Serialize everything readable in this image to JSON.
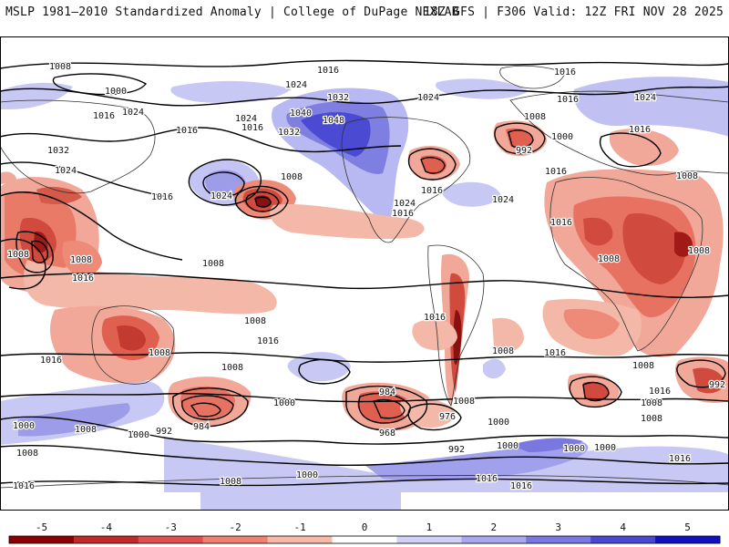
{
  "header": {
    "title": "MSLP 1981–2010 Standardized Anomaly | College of DuPage NEXLAB",
    "run_info": "18Z GFS | F306 Valid: 12Z FRI NOV 28 2025"
  },
  "colorbar": {
    "ticks": [
      "-5",
      "-4",
      "-3",
      "-2",
      "-1",
      "0",
      "1",
      "2",
      "3",
      "4",
      "5"
    ],
    "colors": [
      "#8b0000",
      "#c22a2a",
      "#e05050",
      "#f08070",
      "#f8b8a8",
      "#ffffff",
      "#d0d0f8",
      "#a8a8f0",
      "#7878e0",
      "#4848d0",
      "#1010c0"
    ]
  },
  "isobar_labels": [
    "1008",
    "1000",
    "1016",
    "1024",
    "1016",
    "1032",
    "1024",
    "1040",
    "1048",
    "1032",
    "1024",
    "1016",
    "1016",
    "1008",
    "1024",
    "1016",
    "1024",
    "1016",
    "1016",
    "1024",
    "1024",
    "1008",
    "1000",
    "992",
    "1016",
    "1024",
    "1016",
    "1016",
    "1008",
    "1032",
    "1024",
    "1016",
    "1016",
    "1008",
    "1008",
    "1008",
    "1008",
    "1016",
    "1016",
    "1008",
    "1008",
    "1008",
    "1016",
    "1008",
    "1008",
    "1016",
    "1016",
    "1008",
    "1000",
    "984",
    "984",
    "968",
    "976",
    "1000",
    "1008",
    "1000",
    "1008",
    "992",
    "1000",
    "1008",
    "1016",
    "1008",
    "992",
    "1000",
    "1008",
    "1000",
    "1016",
    "1000",
    "1008",
    "1016",
    "1016",
    "1016",
    "992",
    "1000"
  ]
}
